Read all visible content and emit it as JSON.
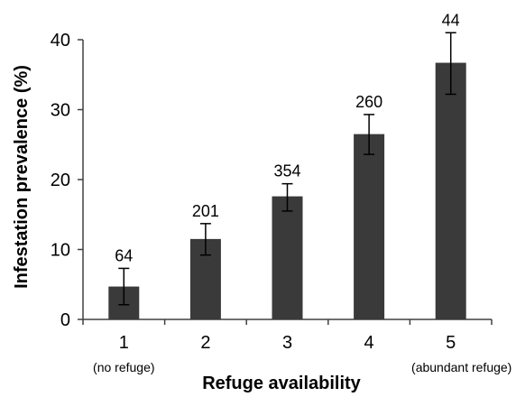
{
  "chart_data": {
    "type": "bar",
    "xlabel": "Refuge availability",
    "ylabel": "Infestation prevalence  (%)",
    "ylim": [
      0,
      40
    ],
    "yticks": [
      0,
      10,
      20,
      30,
      40
    ],
    "categories": [
      "1",
      "2",
      "3",
      "4",
      "5"
    ],
    "category_sublabels": [
      "(no refuge)",
      "",
      "",
      "",
      "(abundant refuge)"
    ],
    "values": [
      4.7,
      11.5,
      17.6,
      26.5,
      36.7
    ],
    "error_low": [
      2.1,
      9.2,
      15.5,
      23.6,
      32.2
    ],
    "error_high": [
      7.3,
      13.7,
      19.4,
      29.3,
      41.0
    ],
    "data_labels": [
      "64",
      "201",
      "354",
      "260",
      "44"
    ],
    "grid": false,
    "legend": "none",
    "bar_color": "#3a3a3a"
  }
}
